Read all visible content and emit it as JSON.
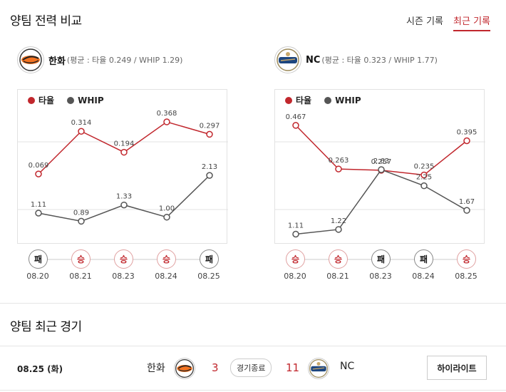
{
  "sections": {
    "comparison_title": "양팀 전력 비교",
    "recent_title": "양팀 최근 경기"
  },
  "tabs": [
    {
      "label": "시즌 기록",
      "active": false
    },
    {
      "label": "최근 기록",
      "active": true
    }
  ],
  "colors": {
    "avg": "#c1272d",
    "whip": "#555555",
    "accent": "#c1272d"
  },
  "teams": [
    {
      "id": "hanwha",
      "name": "한화",
      "stat_text": "(평균 : 타율 0.249 / WHIP 1.29)",
      "logo_icon": "hanwha-eagles-logo",
      "legend": {
        "avg": "타율",
        "whip": "WHIP"
      },
      "chart_data": {
        "type": "line",
        "x": [
          "08.20",
          "08.21",
          "08.23",
          "08.24",
          "08.25"
        ],
        "series": [
          {
            "name": "타율",
            "values": [
              0.069,
              0.314,
              0.194,
              0.368,
              0.297
            ],
            "labels": [
              "0.069",
              "0.314",
              "0.194",
              "0.368",
              "0.297"
            ]
          },
          {
            "name": "WHIP",
            "values": [
              1.11,
              0.89,
              1.33,
              1.0,
              2.13
            ],
            "labels": [
              "1.11",
              "0.89",
              "1.33",
              "1.00",
              "2.13"
            ]
          }
        ]
      },
      "results": [
        {
          "date": "08.20",
          "result": "패"
        },
        {
          "date": "08.21",
          "result": "승"
        },
        {
          "date": "08.23",
          "result": "승"
        },
        {
          "date": "08.24",
          "result": "승"
        },
        {
          "date": "08.25",
          "result": "패"
        }
      ]
    },
    {
      "id": "nc",
      "name": "NC",
      "stat_text": "(평균 : 타율 0.323 / WHIP 1.77)",
      "logo_icon": "nc-dinos-logo",
      "legend": {
        "avg": "타율",
        "whip": "WHIP"
      },
      "chart_data": {
        "type": "line",
        "x": [
          "08.20",
          "08.21",
          "08.23",
          "08.24",
          "08.25"
        ],
        "series": [
          {
            "name": "타율",
            "values": [
              0.467,
              0.263,
              0.257,
              0.235,
              0.395
            ],
            "labels": [
              "0.467",
              "0.263",
              "0.257",
              "0.235",
              "0.395"
            ]
          },
          {
            "name": "WHIP",
            "values": [
              1.11,
              1.22,
              2.63,
              2.25,
              1.67
            ],
            "labels": [
              "1.11",
              "1.22",
              "2.63",
              "2.25",
              "1.67"
            ]
          }
        ]
      },
      "results": [
        {
          "date": "08.20",
          "result": "승"
        },
        {
          "date": "08.21",
          "result": "승"
        },
        {
          "date": "08.23",
          "result": "패"
        },
        {
          "date": "08.24",
          "result": "패"
        },
        {
          "date": "08.25",
          "result": "승"
        }
      ]
    }
  ],
  "recent_game": {
    "date": "08.25 (화)",
    "home_team": "한화",
    "home_score": "3",
    "status": "경기종료",
    "away_score": "11",
    "away_team": "NC",
    "highlight_label": "하이라이트"
  }
}
